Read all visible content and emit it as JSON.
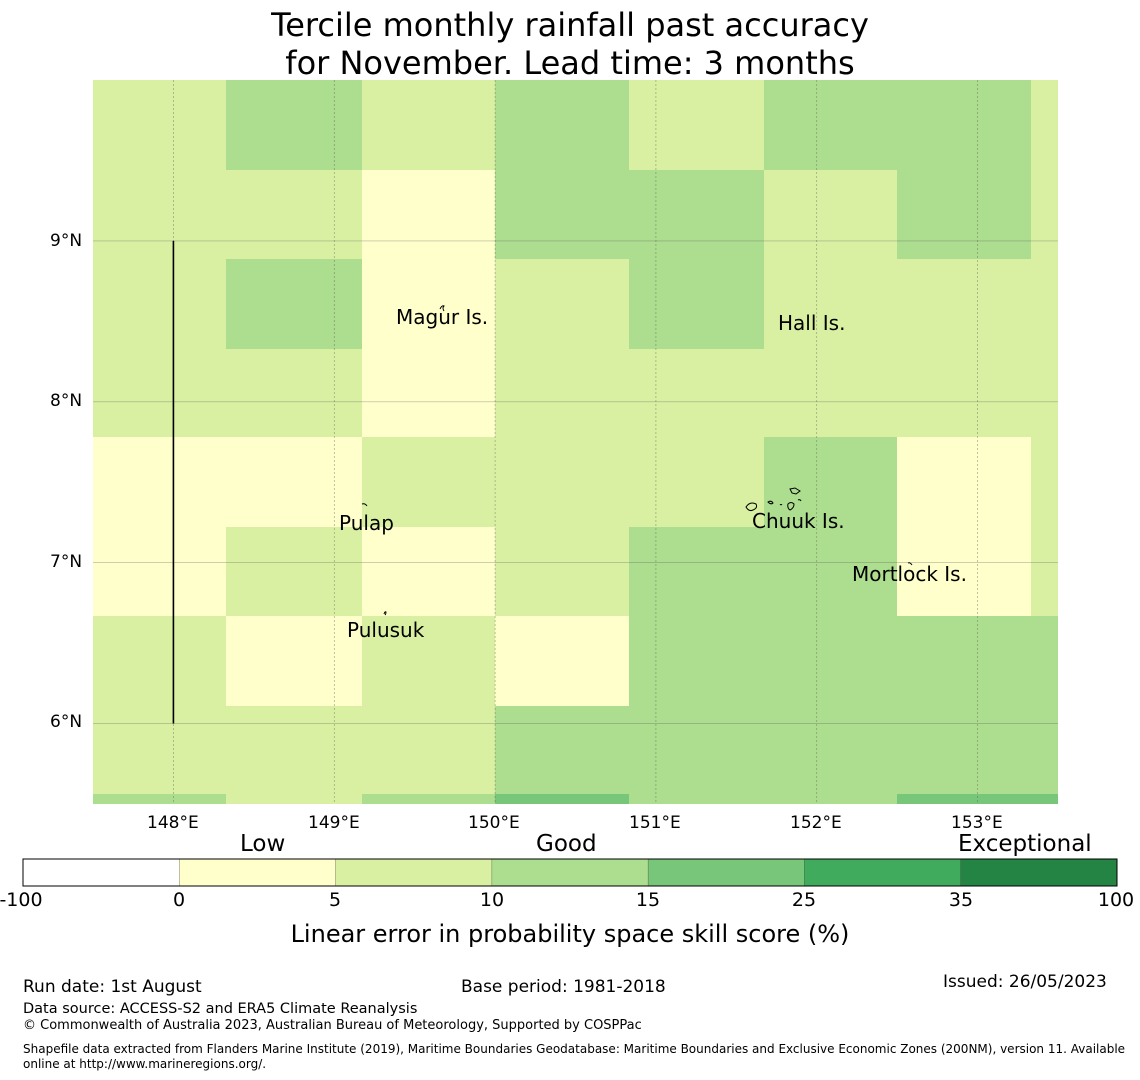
{
  "title": {
    "line1": "Tercile monthly rainfall past accuracy",
    "line2": "for November. Lead time: 3 months"
  },
  "map": {
    "lon_range": [
      147.5,
      153.5
    ],
    "lat_range": [
      5.5,
      10.0
    ],
    "lon_ticks": [
      "148°E",
      "149°E",
      "150°E",
      "151°E",
      "152°E",
      "153°E"
    ],
    "lat_ticks": [
      "9°N",
      "8°N",
      "7°N",
      "6°N"
    ],
    "grid_lines": true,
    "grid": {
      "lon_edges": [
        147.5,
        148.33,
        149.17,
        150.0,
        150.83,
        151.67,
        152.5,
        153.33,
        153.5
      ],
      "lat_edges": [
        10.0,
        9.44,
        8.89,
        8.33,
        7.78,
        7.22,
        6.67,
        6.11,
        5.56,
        5.5
      ],
      "rows": [
        [
          2,
          3,
          2,
          3,
          2,
          3,
          3,
          2
        ],
        [
          2,
          2,
          1,
          3,
          3,
          2,
          3,
          2
        ],
        [
          2,
          3,
          1,
          2,
          3,
          2,
          2,
          2
        ],
        [
          2,
          2,
          1,
          2,
          2,
          2,
          2,
          2
        ],
        [
          1,
          1,
          2,
          2,
          2,
          3,
          1,
          2
        ],
        [
          1,
          2,
          1,
          2,
          3,
          3,
          1,
          2
        ],
        [
          2,
          1,
          2,
          1,
          3,
          3,
          3,
          3
        ],
        [
          2,
          2,
          2,
          3,
          3,
          3,
          3,
          3
        ],
        [
          3,
          2,
          3,
          4,
          3,
          3,
          4,
          4
        ]
      ]
    },
    "boundary_line": {
      "lon": 148.0,
      "lat_from": 9.0,
      "lat_to": 6.0
    },
    "places": [
      {
        "name": "Magur Is.",
        "lon": 149.73,
        "lat": 8.52
      },
      {
        "name": "Hall Is.",
        "lon": 151.98,
        "lat": 8.48
      },
      {
        "name": "Pulap",
        "lon": 149.2,
        "lat": 7.24
      },
      {
        "name": "Chuuk Is.",
        "lon": 151.87,
        "lat": 7.25
      },
      {
        "name": "Mortlock Is.",
        "lon": 152.59,
        "lat": 6.92
      },
      {
        "name": "Pulusuk",
        "lon": 149.33,
        "lat": 6.58
      }
    ]
  },
  "colorbar": {
    "categories": [
      "Low",
      "Good",
      "Exceptional"
    ],
    "ticks": [
      "-100",
      "0",
      "5",
      "10",
      "15",
      "25",
      "35",
      "100"
    ],
    "colors": [
      "#ffffff",
      "#ffffcc",
      "#d9f0a3",
      "#addd8e",
      "#78c679",
      "#41ab5d",
      "#238443"
    ],
    "label": "Linear error in probability space skill score (%)"
  },
  "footer": {
    "run_date": "Run date: 1st August",
    "base_period": "Base period: 1981-2018",
    "issued": "Issued: 26/05/2023",
    "data_source": "Data source: ACCESS-S2 and ERA5 Climate Reanalysis",
    "copyright": "© Commonwealth of Australia 2023, Australian Bureau of Meteorology, Supported by COSPPac",
    "shapefile_line1": "Shapefile data extracted from Flanders Marine Institute (2019), Maritime Boundaries Geodatabase: Maritime Boundaries and Exclusive Economic Zones (200NM), version 11. Available",
    "shapefile_line2": "online at http://www.marineregions.org/."
  }
}
